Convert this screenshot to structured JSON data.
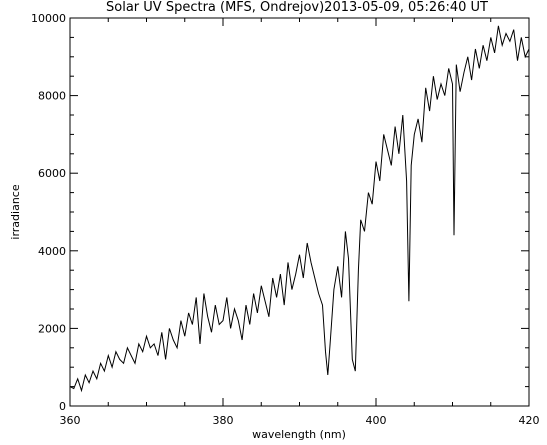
{
  "chart_data": {
    "type": "line",
    "title": "Solar UV Spectra (MFS, Ondrejov)2013-05-09, 05:26:40 UT",
    "xlabel": "wavelength (nm)",
    "ylabel": "irradiance",
    "xlim": [
      360,
      420
    ],
    "ylim": [
      0,
      10000
    ],
    "x_ticks": [
      360,
      380,
      400,
      420
    ],
    "x_tick_labels": [
      "360",
      "380",
      "400",
      "420"
    ],
    "y_ticks": [
      0,
      2000,
      4000,
      6000,
      8000,
      10000
    ],
    "y_tick_labels": [
      "0",
      "2000",
      "4000",
      "6000",
      "8000",
      "10000"
    ],
    "grid": false,
    "legend": "none",
    "line_color": "#000000",
    "series": [
      {
        "x": [
          360,
          360.5,
          361,
          361.5,
          362,
          362.5,
          363,
          363.5,
          364,
          364.5,
          365,
          365.5,
          366,
          366.5,
          367,
          367.5,
          368,
          368.5,
          369,
          369.5,
          370,
          370.5,
          371,
          371.5,
          372,
          372.5,
          373,
          373.5,
          374,
          374.5,
          375,
          375.5,
          376,
          376.5,
          377,
          377.5,
          378,
          378.5,
          379,
          379.5,
          380,
          380.5,
          381,
          381.5,
          382,
          382.5,
          383,
          383.5,
          384,
          384.5,
          385,
          385.5,
          386,
          386.5,
          387,
          387.5,
          388,
          388.5,
          389,
          389.5,
          390,
          390.5,
          391,
          391.5,
          392,
          392.5,
          393,
          393.4,
          393.7,
          394,
          394.5,
          395,
          395.5,
          396,
          396.4,
          396.9,
          397.3,
          397.7,
          398,
          398.5,
          399,
          399.5,
          400,
          400.5,
          401,
          401.5,
          402,
          402.5,
          403,
          403.5,
          404,
          404.3,
          404.6,
          405,
          405.5,
          406,
          406.5,
          407,
          407.5,
          408,
          408.5,
          409,
          409.5,
          410,
          410.2,
          410.5,
          411,
          411.5,
          412,
          412.5,
          413,
          413.5,
          414,
          414.5,
          415,
          415.5,
          416,
          416.5,
          417,
          417.5,
          418,
          418.5,
          419,
          419.5,
          420
        ],
        "values": [
          500,
          450,
          700,
          400,
          800,
          600,
          900,
          700,
          1100,
          900,
          1300,
          1000,
          1400,
          1200,
          1100,
          1500,
          1300,
          1100,
          1600,
          1400,
          1800,
          1500,
          1600,
          1300,
          1900,
          1200,
          2000,
          1700,
          1500,
          2200,
          1800,
          2400,
          2100,
          2800,
          1600,
          2900,
          2300,
          1900,
          2600,
          2100,
          2200,
          2800,
          2000,
          2500,
          2200,
          1700,
          2600,
          2100,
          2900,
          2400,
          3100,
          2700,
          2300,
          3300,
          2800,
          3400,
          2600,
          3700,
          3000,
          3400,
          3900,
          3300,
          4200,
          3700,
          3300,
          2900,
          2600,
          1400,
          800,
          1600,
          3000,
          3600,
          2800,
          4500,
          3800,
          1200,
          900,
          3500,
          4800,
          4500,
          5500,
          5200,
          6300,
          5800,
          7000,
          6600,
          6200,
          7200,
          6500,
          7500,
          5800,
          2700,
          6200,
          7000,
          7400,
          6800,
          8200,
          7600,
          8500,
          7900,
          8300,
          8000,
          8700,
          8300,
          4400,
          8800,
          8100,
          8600,
          9000,
          8400,
          9200,
          8700,
          9300,
          8900,
          9500,
          9100,
          9800,
          9300,
          9600,
          9400,
          9700,
          8900,
          9500,
          9000,
          9200
        ]
      }
    ]
  }
}
